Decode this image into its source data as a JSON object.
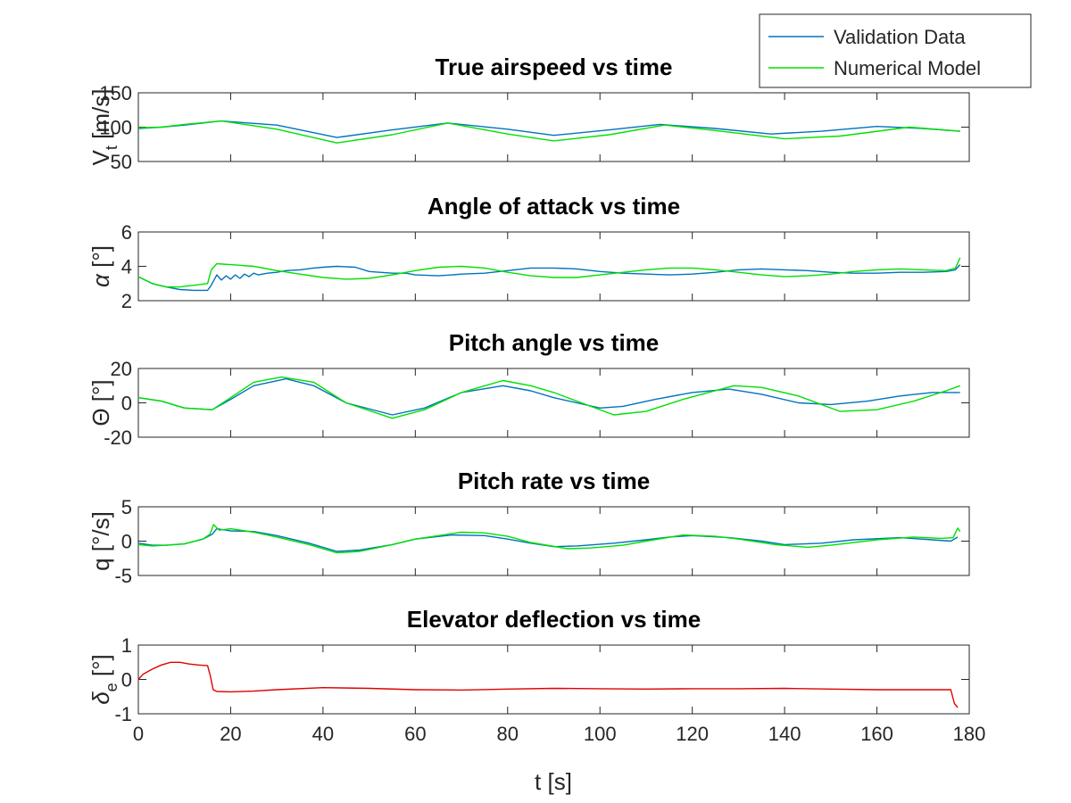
{
  "legend": {
    "entries": [
      {
        "name": "Validation Data",
        "color": "#0072BD"
      },
      {
        "name": "Numerical Model",
        "color": "#00E000"
      }
    ]
  },
  "xaxis": {
    "label": "t [s]",
    "ticks": [
      0,
      20,
      40,
      60,
      80,
      100,
      120,
      140,
      160,
      180
    ],
    "lim": [
      0,
      180
    ]
  },
  "chart_data": [
    {
      "type": "line",
      "title": "True airspeed vs time",
      "ylabel_main": "V",
      "ylabel_sub": "t",
      "ylabel_rest": " [m/s]",
      "ylim": [
        50,
        150
      ],
      "yticks": [
        50,
        100,
        150
      ],
      "series": [
        {
          "name": "Validation Data",
          "color": "#0072BD",
          "x": [
            0,
            5,
            10,
            18,
            30,
            43,
            55,
            67,
            80,
            90,
            102,
            113,
            125,
            137,
            148,
            160,
            170,
            178
          ],
          "y": [
            98,
            100,
            103,
            109,
            103,
            85,
            96,
            106,
            97,
            88,
            96,
            104,
            98,
            90,
            94,
            101,
            98,
            94
          ]
        },
        {
          "name": "Numerical Model",
          "color": "#00E000",
          "x": [
            0,
            5,
            10,
            18,
            30,
            43,
            55,
            67,
            80,
            90,
            102,
            114,
            125,
            140,
            152,
            167,
            178
          ],
          "y": [
            99,
            100,
            104,
            109,
            97,
            77,
            89,
            106,
            90,
            80,
            89,
            103,
            95,
            83,
            87,
            100,
            94
          ]
        }
      ]
    },
    {
      "type": "line",
      "title": "Angle of attack vs time",
      "ylabel_main": "α",
      "ylabel_sub": "",
      "ylabel_rest": " [°]",
      "ylim": [
        2,
        6
      ],
      "yticks": [
        2,
        4,
        6
      ],
      "series": [
        {
          "name": "Validation Data",
          "color": "#0072BD",
          "x": [
            0,
            3,
            6,
            9,
            12,
            15,
            15.8,
            17,
            18,
            19,
            20,
            21,
            22,
            23,
            24,
            25,
            26,
            28,
            30,
            32,
            35,
            38,
            40,
            43,
            47,
            50,
            55,
            58,
            60,
            65,
            68,
            70,
            75,
            80,
            85,
            90,
            95,
            100,
            105,
            110,
            115,
            120,
            125,
            130,
            135,
            140,
            145,
            150,
            155,
            160,
            165,
            170,
            175,
            177,
            178
          ],
          "y": [
            3.4,
            3.0,
            2.8,
            2.65,
            2.6,
            2.6,
            2.9,
            3.5,
            3.2,
            3.45,
            3.25,
            3.5,
            3.3,
            3.55,
            3.4,
            3.6,
            3.5,
            3.6,
            3.65,
            3.75,
            3.8,
            3.9,
            3.95,
            4.0,
            3.95,
            3.7,
            3.6,
            3.6,
            3.5,
            3.45,
            3.5,
            3.55,
            3.6,
            3.75,
            3.9,
            3.9,
            3.85,
            3.7,
            3.6,
            3.55,
            3.5,
            3.55,
            3.65,
            3.8,
            3.85,
            3.8,
            3.75,
            3.65,
            3.6,
            3.6,
            3.65,
            3.65,
            3.7,
            3.8,
            4.1
          ]
        },
        {
          "name": "Numerical Model",
          "color": "#00E000",
          "x": [
            0,
            3,
            6,
            9,
            12,
            15,
            15.8,
            17,
            20,
            25,
            30,
            35,
            40,
            45,
            50,
            55,
            60,
            65,
            70,
            75,
            80,
            85,
            90,
            95,
            100,
            105,
            110,
            115,
            120,
            125,
            130,
            135,
            140,
            145,
            150,
            155,
            160,
            165,
            170,
            175,
            177,
            178
          ],
          "y": [
            3.4,
            3.0,
            2.8,
            2.8,
            2.9,
            3.0,
            3.8,
            4.15,
            4.1,
            4.0,
            3.75,
            3.55,
            3.35,
            3.25,
            3.3,
            3.5,
            3.75,
            3.95,
            4.0,
            3.9,
            3.65,
            3.45,
            3.35,
            3.35,
            3.5,
            3.65,
            3.8,
            3.9,
            3.9,
            3.8,
            3.65,
            3.5,
            3.4,
            3.45,
            3.55,
            3.7,
            3.8,
            3.85,
            3.8,
            3.75,
            3.9,
            4.5
          ]
        }
      ]
    },
    {
      "type": "line",
      "title": "Pitch angle vs time",
      "ylabel_main": "Θ",
      "ylabel_sub": "",
      "ylabel_rest": " [°]",
      "ylim": [
        -20,
        20
      ],
      "yticks": [
        -20,
        0,
        20
      ],
      "series": [
        {
          "name": "Validation Data",
          "color": "#0072BD",
          "x": [
            0,
            5,
            10,
            16,
            20,
            25,
            32,
            38,
            45,
            55,
            62,
            70,
            79,
            85,
            90,
            100,
            105,
            112,
            120,
            128,
            135,
            143,
            150,
            158,
            165,
            172,
            178
          ],
          "y": [
            3,
            1,
            -3,
            -4,
            2,
            10,
            14,
            10,
            0,
            -7,
            -3,
            6,
            10,
            7,
            3,
            -3,
            -2,
            2,
            6,
            8,
            5,
            0,
            -1,
            1,
            4,
            6,
            6
          ]
        },
        {
          "name": "Numerical Model",
          "color": "#00E000",
          "x": [
            0,
            5,
            10,
            16,
            20,
            25,
            31,
            38,
            45,
            55,
            62,
            70,
            79,
            85,
            90,
            103,
            110,
            118,
            129,
            135,
            143,
            152,
            160,
            168,
            175,
            178
          ],
          "y": [
            3,
            1,
            -3,
            -4,
            3,
            12,
            15,
            12,
            0,
            -9,
            -4,
            6,
            13,
            10,
            6,
            -7,
            -5,
            2,
            10,
            9,
            4,
            -5,
            -4,
            1,
            7,
            10
          ]
        }
      ]
    },
    {
      "type": "line",
      "title": "Pitch rate vs time",
      "ylabel_main": "q",
      "ylabel_sub": "",
      "ylabel_rest": " [°/s]",
      "ylim": [
        -5,
        5
      ],
      "yticks": [
        -5,
        0,
        5
      ],
      "series": [
        {
          "name": "Validation Data",
          "color": "#0072BD",
          "x": [
            0,
            3,
            6,
            10,
            14,
            16,
            17,
            18,
            20,
            25,
            30,
            37,
            43,
            48,
            55,
            60,
            68,
            75,
            80,
            85,
            90,
            95,
            103,
            110,
            115,
            120,
            128,
            135,
            140,
            148,
            155,
            165,
            172,
            176,
            177.5
          ],
          "y": [
            -0.3,
            -0.6,
            -0.6,
            -0.4,
            0.3,
            1.0,
            1.8,
            1.7,
            1.5,
            1.4,
            0.8,
            -0.3,
            -1.5,
            -1.3,
            -0.5,
            0.3,
            0.9,
            0.8,
            0.3,
            -0.3,
            -0.8,
            -0.7,
            -0.3,
            0.2,
            0.6,
            0.8,
            0.5,
            0.0,
            -0.5,
            -0.3,
            0.2,
            0.5,
            0.2,
            0.0,
            0.6
          ]
        },
        {
          "name": "Numerical Model",
          "color": "#00E000",
          "x": [
            0,
            3,
            6,
            10,
            14,
            15.5,
            16.3,
            17.5,
            20,
            25,
            30,
            37,
            43,
            48,
            55,
            60,
            70,
            75,
            80,
            85,
            93,
            98,
            105,
            110,
            118,
            125,
            130,
            138,
            145,
            150,
            160,
            168,
            174,
            176.5,
            177.5,
            178
          ],
          "y": [
            -0.5,
            -0.7,
            -0.6,
            -0.4,
            0.3,
            1.0,
            2.4,
            1.6,
            1.8,
            1.3,
            0.6,
            -0.5,
            -1.7,
            -1.5,
            -0.5,
            0.3,
            1.3,
            1.2,
            0.7,
            -0.2,
            -1.1,
            -1.0,
            -0.6,
            0.0,
            0.9,
            0.7,
            0.3,
            -0.5,
            -0.9,
            -0.6,
            0.2,
            0.6,
            0.4,
            0.5,
            1.9,
            1.4
          ]
        }
      ]
    },
    {
      "type": "line",
      "title": "Elevator deflection vs time",
      "ylabel_main": "δ",
      "ylabel_sub": "e",
      "ylabel_rest": " [°]",
      "ylim": [
        -1,
        1
      ],
      "yticks": [
        -1,
        0,
        1
      ],
      "series": [
        {
          "name": "",
          "color": "#E00000",
          "x": [
            0,
            1,
            3,
            5,
            7,
            9,
            11,
            13,
            15,
            15.6,
            16.2,
            17,
            20,
            25,
            30,
            40,
            50,
            60,
            70,
            80,
            90,
            100,
            110,
            120,
            130,
            140,
            150,
            160,
            170,
            176,
            176.8,
            177.5
          ],
          "y": [
            0.0,
            0.15,
            0.3,
            0.42,
            0.5,
            0.5,
            0.45,
            0.42,
            0.4,
            0.1,
            -0.3,
            -0.35,
            -0.36,
            -0.34,
            -0.3,
            -0.24,
            -0.26,
            -0.3,
            -0.31,
            -0.28,
            -0.26,
            -0.27,
            -0.28,
            -0.27,
            -0.27,
            -0.26,
            -0.28,
            -0.3,
            -0.3,
            -0.3,
            -0.7,
            -0.82
          ]
        }
      ]
    }
  ]
}
